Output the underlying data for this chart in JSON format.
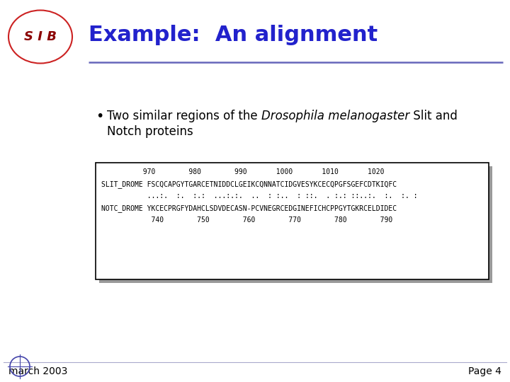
{
  "title": "Example:  An alignment",
  "title_color": "#2222cc",
  "title_fontsize": 22,
  "hr_color": "#6666bb",
  "bullet_fontsize": 12,
  "alignment_line1": "          970        980        990       1000       1010       1020",
  "alignment_line2": "SLIT_DROME FSCQCAPGYTGARCETNIDDCLGEIKCQNNATCIDGVESYKCECQPGFSGEFCDTKIQFC",
  "alignment_line3": "           ...:.  :.  :.:  ...:.:.  ..  : :..  : ::.  . :.: ::..:.  :.  :. :",
  "alignment_line4": "NOTC_DROME YKCECPRGFYDAHCLSDVDECASN-PCVNEGRCEDGINEFICHCPPGYTGKRCELDIDEC",
  "alignment_line5": "            740        750        760        770        780        790",
  "footer_left": "march 2003",
  "footer_right": "Page 4",
  "footer_fontsize": 10,
  "box_edge_color": "#000000",
  "shadow_color": "#999999",
  "mono_fontsize": 7,
  "background_color": "#ffffff"
}
